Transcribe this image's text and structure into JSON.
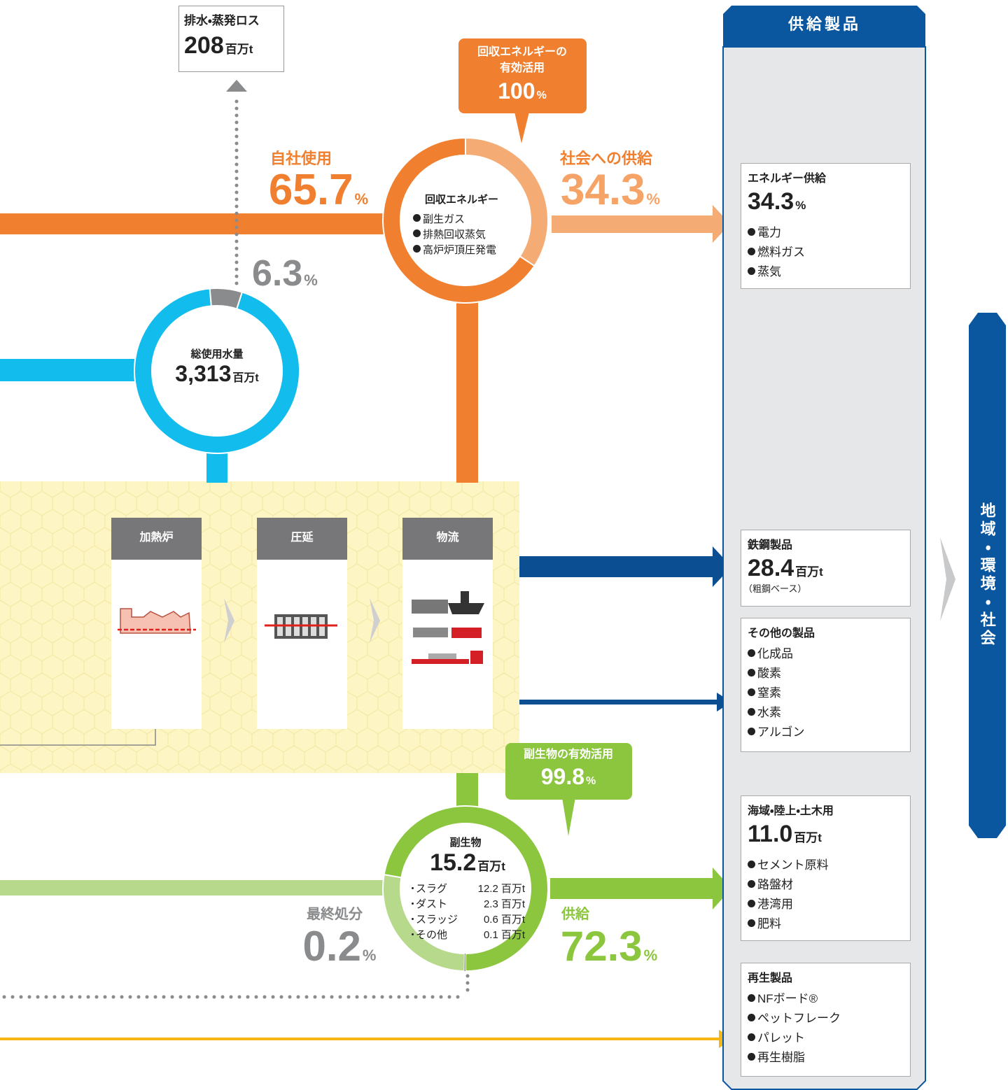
{
  "loss": {
    "label": "排水・蒸発ロス",
    "value": 208,
    "unit": "百万t"
  },
  "energy_callout": {
    "lines": [
      "回収エネルギーの",
      "有効活用"
    ],
    "value": 100,
    "unit": "%"
  },
  "energy": {
    "title": "回収エネルギー",
    "items": [
      "副生ガス",
      "排熱回収蒸気",
      "高炉炉頂圧発電"
    ],
    "self_use": {
      "label": "自社使用",
      "value": 65.7,
      "unit": "%"
    },
    "society": {
      "label": "社会への供給",
      "value": 34.3,
      "unit": "%"
    }
  },
  "water": {
    "title": "総使用水量",
    "value": "3,313",
    "unit": "百万t",
    "loss_share": {
      "value": 6.3,
      "unit": "%"
    }
  },
  "process": {
    "steps": [
      "加熱炉",
      "圧延",
      "物流"
    ]
  },
  "byproduct_callout": {
    "label": "副生物の有効活用",
    "value": 99.8,
    "unit": "%"
  },
  "byproduct": {
    "title": "副生物",
    "value": 15.2,
    "unit": "百万t",
    "breakdown": [
      {
        "name": "スラグ",
        "value": 12.2,
        "unit": "百万t"
      },
      {
        "name": "ダスト",
        "value": 2.3,
        "unit": "百万t"
      },
      {
        "name": "スラッジ",
        "value": 0.6,
        "unit": "百万t"
      },
      {
        "name": "その他",
        "value": 0.1,
        "unit": "百万t"
      }
    ],
    "disposal": {
      "label": "最終処分",
      "value": 0.2,
      "unit": "%"
    },
    "supply": {
      "label": "供給",
      "value": 72.3,
      "unit": "%"
    }
  },
  "products": {
    "title": "供給製品",
    "boxes": [
      {
        "title": "エネルギー供給",
        "value": 34.3,
        "unit": "%",
        "items": [
          "電力",
          "燃料ガス",
          "蒸気"
        ]
      },
      {
        "title": "鉄鋼製品",
        "value": 28.4,
        "unit": "百万t",
        "note": "（粗鋼ベース）"
      },
      {
        "title": "その他の製品",
        "items": [
          "化成品",
          "酸素",
          "窒素",
          "水素",
          "アルゴン"
        ]
      },
      {
        "title": "海域・陸上・土木用",
        "value": "11.0",
        "unit": "百万t",
        "items": [
          "セメント原料",
          "路盤材",
          "港湾用",
          "肥料"
        ]
      },
      {
        "title": "再生製品",
        "items": [
          "NFボード®",
          "ペットフレーク",
          "パレット",
          "再生樹脂"
        ]
      }
    ]
  },
  "destination": "地域・環境・社会"
}
